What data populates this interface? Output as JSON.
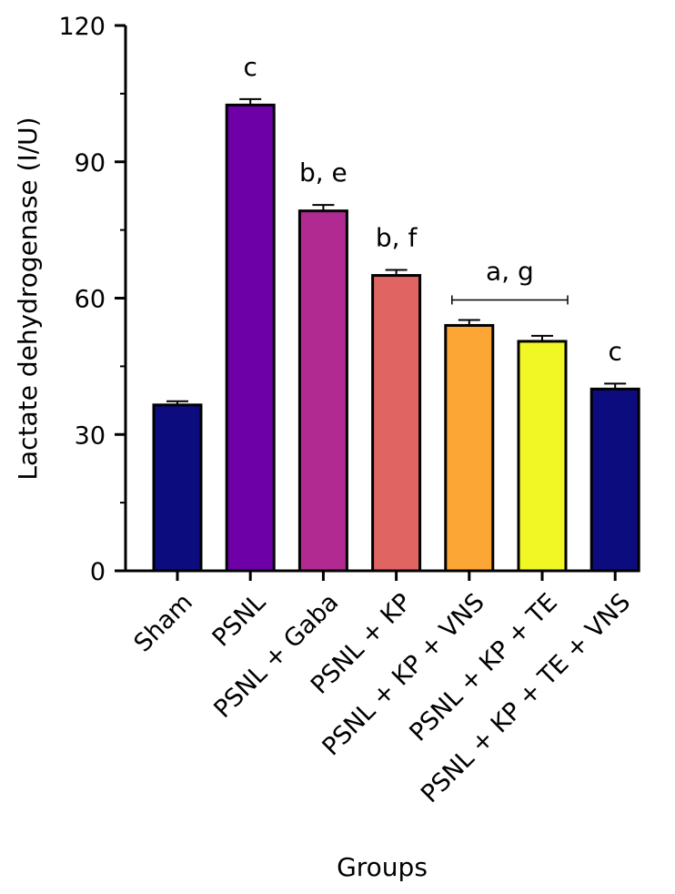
{
  "chart_data": {
    "type": "bar",
    "title": "",
    "xlabel": "Groups",
    "ylabel": "Lactate dehydrogenase (I/U)",
    "ylim": [
      0,
      120
    ],
    "yticks": [
      "0",
      "30",
      "60",
      "90",
      "120"
    ],
    "grid": false,
    "categories": [
      "Sham",
      "PSNL",
      "PSNL + Gaba",
      "PSNL + KP",
      "PSNL + KP + VNS",
      "PSNL + KP + TE",
      "PSNL + KP + TE + VNS"
    ],
    "values": [
      36.5,
      102.5,
      79.2,
      65.0,
      54.0,
      50.5,
      40.0
    ],
    "errors": [
      0.8,
      1.3,
      1.3,
      1.2,
      1.2,
      1.2,
      1.2
    ],
    "colors": [
      "#0d0c7f",
      "#6d00a7",
      "#b02a91",
      "#e06461",
      "#fca636",
      "#f0f724",
      "#0d0c7f"
    ],
    "annotations": [
      {
        "text": "c",
        "category": 1
      },
      {
        "text": "b, e",
        "category": 2
      },
      {
        "text": "b, f",
        "category": 3
      },
      {
        "text": "a, g",
        "bracket": [
          4,
          5
        ]
      },
      {
        "text": "c",
        "category": 6
      }
    ]
  }
}
